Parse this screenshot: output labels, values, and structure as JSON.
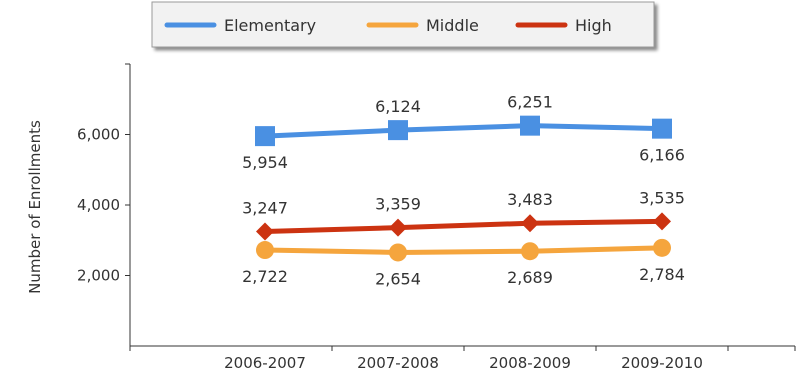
{
  "chart_data": {
    "type": "line",
    "title": "",
    "xlabel": "",
    "ylabel": "Number of Enrollments",
    "categories": [
      "2006-2007",
      "2007-2008",
      "2008-2009",
      "2009-2010"
    ],
    "ylim": [
      0,
      8000
    ],
    "yticks": [
      2000,
      4000,
      6000
    ],
    "ytick_labels": [
      "2,000",
      "4,000",
      "6,000"
    ],
    "grid": false,
    "legend_position": "top",
    "series": [
      {
        "name": "Elementary",
        "color": "#4a90e2",
        "marker": "square",
        "values": [
          5954,
          6124,
          6251,
          6166
        ],
        "value_labels": [
          "5,954",
          "6,124",
          "6,251",
          "6,166"
        ],
        "label_side": [
          "below",
          "above",
          "above",
          "below"
        ]
      },
      {
        "name": "Middle",
        "color": "#f5a53d",
        "marker": "circle",
        "values": [
          2722,
          2654,
          2689,
          2784
        ],
        "value_labels": [
          "2,722",
          "2,654",
          "2,689",
          "2,784"
        ],
        "label_side": [
          "below",
          "below",
          "below",
          "below"
        ]
      },
      {
        "name": "High",
        "color": "#cc3311",
        "marker": "diamond",
        "values": [
          3247,
          3359,
          3483,
          3535
        ],
        "value_labels": [
          "3,247",
          "3,359",
          "3,483",
          "3,535"
        ],
        "label_side": [
          "above",
          "above",
          "above",
          "above"
        ]
      }
    ]
  }
}
